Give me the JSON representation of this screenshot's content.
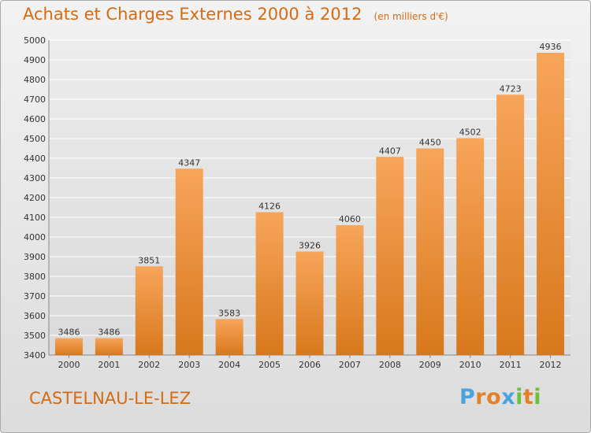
{
  "title": "Achats et Charges Externes 2000 à 2012",
  "subtitle": "(en milliers d'€)",
  "place": "CASTELNAU-LE-LEZ",
  "brand": {
    "letters": [
      "P",
      "r",
      "o",
      "x",
      "i",
      "t",
      "i"
    ],
    "colors": [
      "#4aa3df",
      "#e2812a",
      "#e2812a",
      "#4aa3df",
      "#6cbf3c",
      "#e2812a",
      "#6cbf3c"
    ]
  },
  "colors": {
    "accent": "#d46b12",
    "bar_light": "#f7a55a",
    "bar_dark": "#d8781c"
  },
  "chart_data": {
    "type": "bar",
    "categories": [
      "2000",
      "2001",
      "2002",
      "2003",
      "2004",
      "2005",
      "2006",
      "2007",
      "2008",
      "2009",
      "2010",
      "2011",
      "2012"
    ],
    "values": [
      3486,
      3486,
      3851,
      4347,
      3583,
      4126,
      3926,
      4060,
      4407,
      4450,
      4502,
      4723,
      4936
    ],
    "ylim": [
      3400,
      5000
    ],
    "yticks": [
      3400,
      3500,
      3600,
      3700,
      3800,
      3900,
      4000,
      4100,
      4200,
      4300,
      4400,
      4500,
      4600,
      4700,
      4800,
      4900,
      5000
    ],
    "grid": true,
    "xlabel": "",
    "ylabel": ""
  }
}
